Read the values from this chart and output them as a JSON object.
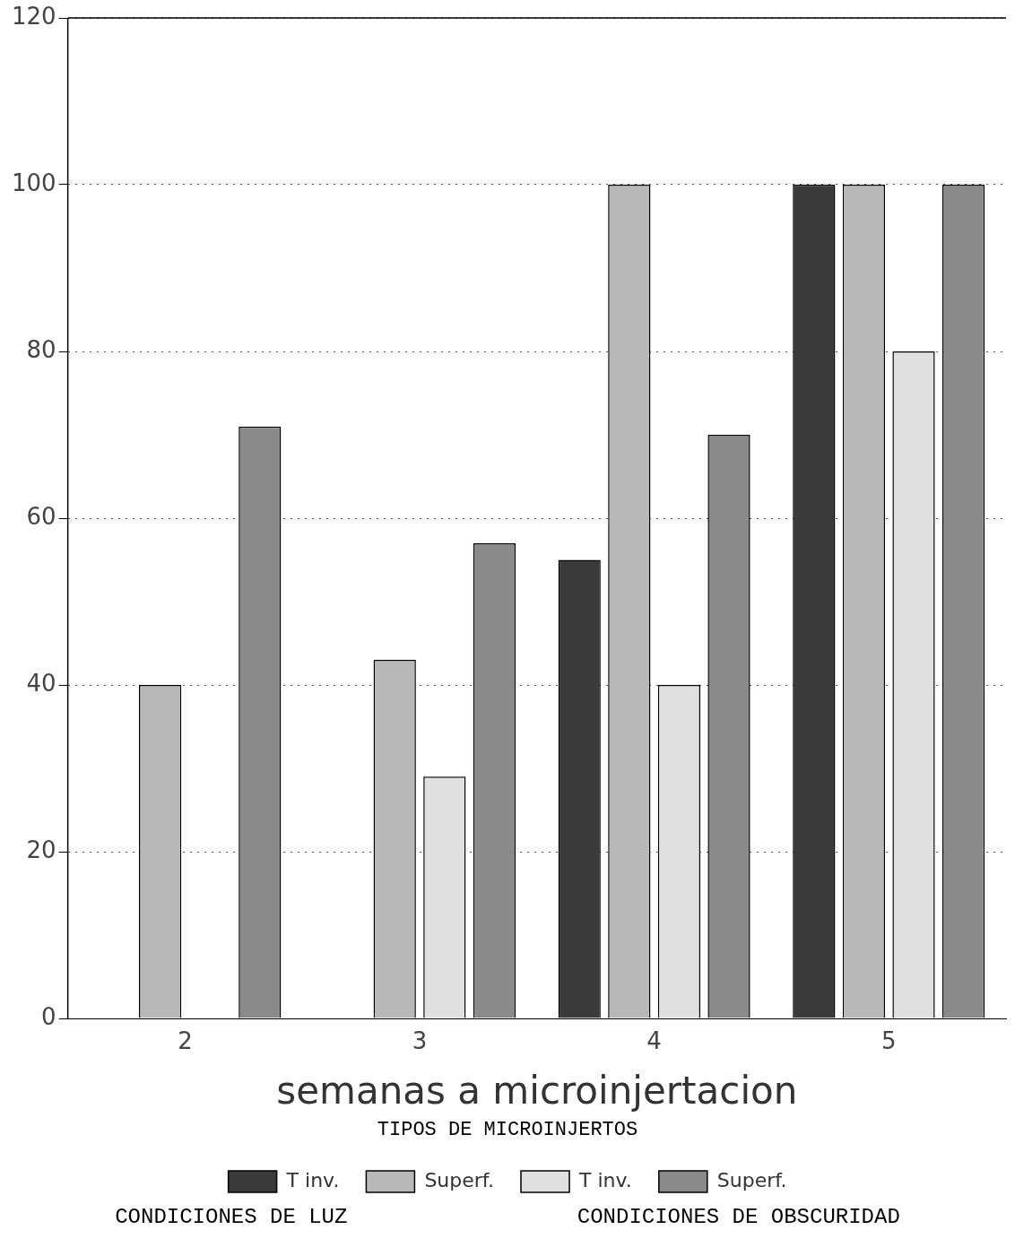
{
  "chart_data": {
    "type": "bar",
    "categories": [
      "2",
      "3",
      "4",
      "5"
    ],
    "series": [
      {
        "name": "T inv.",
        "color": "#3a3a3a",
        "values": [
          0,
          0,
          55,
          100
        ]
      },
      {
        "name": "Superf.",
        "color": "#b8b8b8",
        "values": [
          40,
          43,
          100,
          100
        ]
      },
      {
        "name": "T inv.",
        "color": "#e0e0e0",
        "values": [
          0,
          29,
          40,
          80
        ]
      },
      {
        "name": "Superf.",
        "color": "#8a8a8a",
        "values": [
          71,
          57,
          70,
          100
        ]
      }
    ],
    "xlabel": "semanas a microinjertacion",
    "legend_title": "TIPOS DE MICROINJERTOS",
    "annotations": [
      "CONDICIONES DE LUZ",
      "CONDICIONES DE OBSCURIDAD"
    ],
    "ylim": [
      0,
      120
    ],
    "yticks": [
      0,
      20,
      40,
      60,
      80,
      100,
      120
    ],
    "grid": "y",
    "legend": "bottom"
  }
}
